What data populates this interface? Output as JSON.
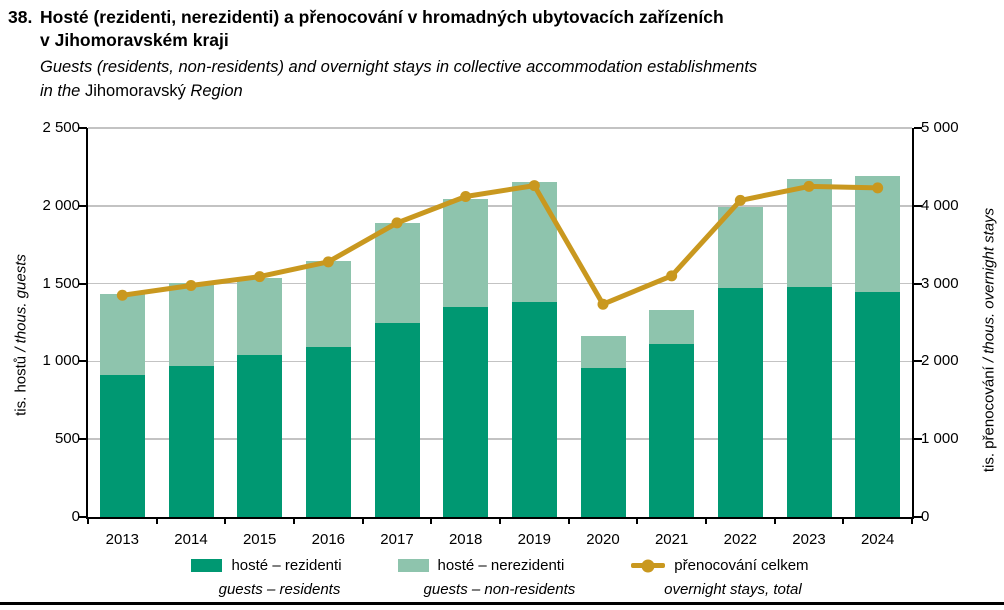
{
  "title": {
    "number": "38.",
    "line1": "Hosté (rezidenti, nerezidenti) a přenocování v hromadných ubytovacích zařízeních",
    "line2": "v Jihomoravském kraji",
    "subtitle_line1": "Guests (residents, non-residents) and overnight stays in collective accommodation establishments",
    "subtitle_line2_pre": "in the ",
    "subtitle_line2_upright": "Jihomoravský",
    "subtitle_line2_post": " Region"
  },
  "axes": {
    "left": {
      "title_upright": "tis. hostů",
      "title_italic": " / thous. guests",
      "ticks": [
        "2 500",
        "2 000",
        "1 500",
        "1 000",
        "500",
        "0"
      ],
      "tick_values": [
        2500,
        2000,
        1500,
        1000,
        500,
        0
      ]
    },
    "right": {
      "title_upright": "tis. přenocování",
      "title_italic": " / thous. overnight stays",
      "ticks": [
        "5 000",
        "4 000",
        "3 000",
        "2 000",
        "1 000",
        "0"
      ],
      "tick_values": [
        5000,
        4000,
        3000,
        2000,
        1000,
        0
      ]
    }
  },
  "legend": [
    {
      "swatch": "residents-bar",
      "label_cs": "hosté – rezidenti",
      "label_en": "guests – residents"
    },
    {
      "swatch": "non-residents-bar",
      "label_cs": "hosté – nerezidenti",
      "label_en": "guests – non-residents"
    },
    {
      "swatch": "overnight-line",
      "label_cs": "přenocování celkem",
      "label_en": "overnight stays, total"
    }
  ],
  "colors": {
    "residents": "#009872",
    "non_residents": "#8ec4ad",
    "overnight_line": "#c9981f",
    "gridline": "#c3c3c3",
    "axis": "#000000"
  },
  "chart_data": {
    "type": "bar",
    "subtype": "stacked-bars-with-line-overlay",
    "title": "Hosté (rezidenti, nerezidenti) a přenocování v hromadných ubytovacích zařízeních v Jihomoravském kraji / Guests (residents, non-residents) and overnight stays in collective accommodation establishments in the Jihomoravský Region",
    "categories": [
      "2013",
      "2014",
      "2015",
      "2016",
      "2017",
      "2018",
      "2019",
      "2020",
      "2021",
      "2022",
      "2023",
      "2024"
    ],
    "series": [
      {
        "name": "hosté – rezidenti / guests – residents",
        "kind": "bar-stacked",
        "axis": "left",
        "values": [
          915,
          970,
          1040,
          1095,
          1245,
          1350,
          1380,
          960,
          1110,
          1470,
          1475,
          1445
        ]
      },
      {
        "name": "hosté – nerezidenti / guests – non-residents",
        "kind": "bar-stacked",
        "axis": "left",
        "values": [
          520,
          535,
          495,
          550,
          645,
          695,
          770,
          205,
          220,
          525,
          695,
          745
        ]
      },
      {
        "name": "přenocování celkem / overnight stays, total",
        "kind": "line",
        "axis": "right",
        "values": [
          2850,
          2975,
          3090,
          3280,
          3780,
          4120,
          4260,
          2735,
          3100,
          4070,
          4250,
          4230
        ]
      }
    ],
    "left_axis": {
      "label": "tis. hostů / thous. guests",
      "range": [
        0,
        2500
      ],
      "tick_step": 500
    },
    "right_axis": {
      "label": "tis. přenocování / thous. overnight stays",
      "range": [
        0,
        5000
      ],
      "tick_step": 1000
    },
    "grid": true,
    "legend_position": "bottom",
    "units": "thousands"
  }
}
